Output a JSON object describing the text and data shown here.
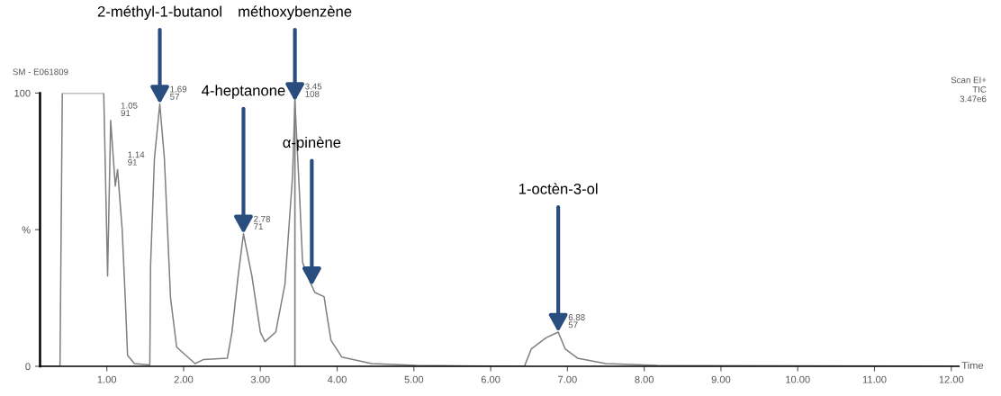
{
  "chart_data": {
    "type": "line",
    "xlabel": "Time",
    "x": [
      0.13,
      0.39,
      0.42,
      0.96,
      1.01,
      1.05,
      1.11,
      1.14,
      1.2,
      1.24,
      1.27,
      1.36,
      1.56,
      1.57,
      1.62,
      1.69,
      1.75,
      1.83,
      1.91,
      2.15,
      2.26,
      2.57,
      2.63,
      2.71,
      2.78,
      2.89,
      3.0,
      3.06,
      3.2,
      3.32,
      3.42,
      3.45,
      3.51,
      3.55,
      3.63,
      3.71,
      3.83,
      3.86,
      3.92,
      4.06,
      4.45,
      5.04,
      6.44,
      6.53,
      6.72,
      6.88,
      6.97,
      7.13,
      7.5,
      8.17,
      12.1
    ],
    "series": [
      {
        "color": "#808080",
        "values": [
          0,
          0,
          100,
          100,
          33,
          90,
          66,
          72,
          50,
          25,
          4,
          1,
          0.5,
          37,
          76,
          96,
          76,
          25,
          7,
          1,
          2.5,
          3,
          12.5,
          33,
          48.5,
          33,
          12.5,
          9,
          12.5,
          30,
          70,
          97,
          63,
          38,
          32,
          27,
          25.5,
          20,
          9.5,
          3.4,
          1,
          0.3,
          0,
          6.4,
          10.4,
          12.5,
          6.4,
          3,
          1,
          0.3,
          0
        ]
      }
    ],
    "xlim": [
      0.13,
      12.1
    ],
    "ylim": [
      0,
      100
    ],
    "xticks": [
      {
        "value": 1,
        "label": "1.00"
      },
      {
        "value": 2,
        "label": "2.00"
      },
      {
        "value": 3,
        "label": "3.00"
      },
      {
        "value": 4,
        "label": "4.00"
      },
      {
        "value": 5,
        "label": "5.00"
      },
      {
        "value": 6,
        "label": "6.00"
      },
      {
        "value": 7,
        "label": "7.00"
      },
      {
        "value": 8,
        "label": "8.00"
      },
      {
        "value": 9,
        "label": "9.00"
      },
      {
        "value": 10,
        "label": "10.00"
      },
      {
        "value": 11,
        "label": "11.00"
      },
      {
        "value": 12,
        "label": "12.00"
      }
    ],
    "yticks": [
      0,
      {
        "value": 50,
        "label": "%"
      },
      100
    ],
    "ref_lines": [
      {
        "axis": "x",
        "value": 3.45,
        "color": "#808080"
      }
    ],
    "grid": false,
    "legend": false,
    "marker": "none",
    "line_style": "solid",
    "annotations": [
      "SM - E061809",
      "Scan EI+\nTIC\n3.47e6",
      {
        "text": "1.05\n91",
        "x": 1.05,
        "y": 90
      },
      {
        "text": "1.14\n91",
        "x": 1.14,
        "y": 72
      },
      {
        "text": "1.69\n57",
        "x": 1.69,
        "y": 96
      },
      {
        "text": "2.78\n71",
        "x": 2.78,
        "y": 48.5
      },
      {
        "text": "3.45\n108",
        "x": 3.45,
        "y": 97
      },
      {
        "text": "6.88\n57",
        "x": 6.88,
        "y": 12.5
      },
      {
        "text": "2-méthyl-1-butanol",
        "x": 1.69,
        "y": 96
      },
      {
        "text": "méthoxybenzène",
        "x": 3.45,
        "y": 97
      },
      {
        "text": "4-heptanone",
        "x": 2.78,
        "y": 48.5
      },
      {
        "text": "α-pinène",
        "x": 3.67,
        "y": 29.5
      },
      {
        "text": "1-octèn-3-ol",
        "x": 6.88,
        "y": 12.5
      }
    ]
  }
}
